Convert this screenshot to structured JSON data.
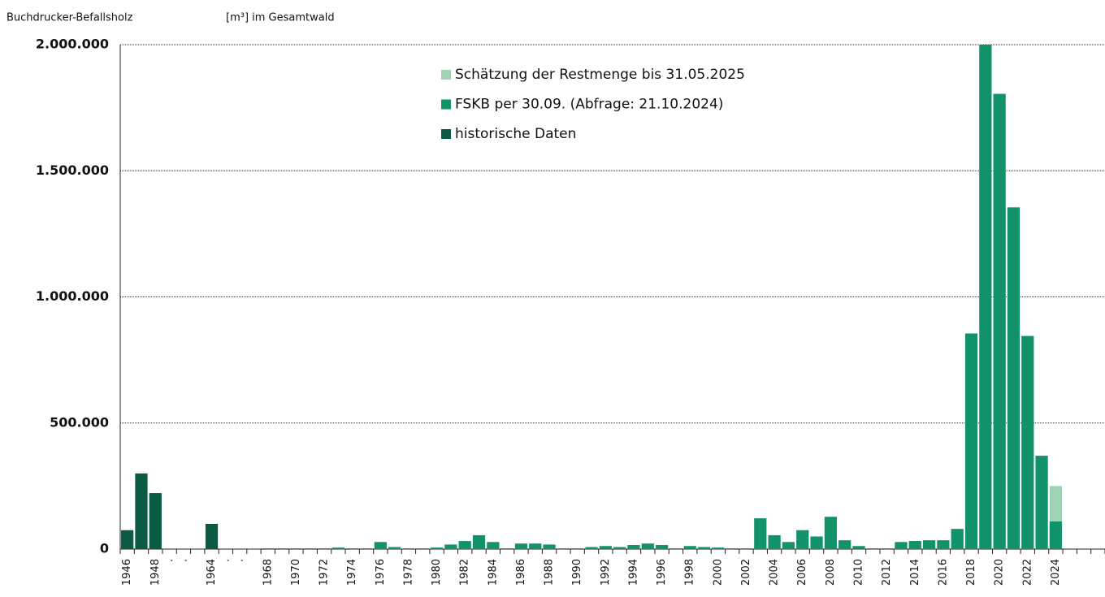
{
  "chart_data": {
    "type": "bar",
    "stacked": true,
    "y_label": "Buchdrucker-Befallsholz",
    "y_unit": "[m³] im Gesamtwald",
    "categories": [
      "1946",
      null,
      "1948",
      ".",
      ".",
      null,
      "1964",
      ".",
      ".",
      null,
      "1968",
      null,
      "1970",
      null,
      "1972",
      null,
      "1974",
      null,
      "1976",
      null,
      "1978",
      null,
      "1980",
      null,
      "1982",
      null,
      "1984",
      null,
      "1986",
      null,
      "1988",
      null,
      "1990",
      null,
      "1992",
      null,
      "1994",
      null,
      "1996",
      null,
      "1998",
      null,
      "2000",
      null,
      "2002",
      null,
      "2004",
      null,
      "2006",
      null,
      "2008",
      null,
      "2010",
      null,
      "2012",
      null,
      "2014",
      null,
      "2016",
      null,
      "2018",
      null,
      "2020",
      null,
      "2022",
      null,
      "2024",
      null,
      null,
      null
    ],
    "series": [
      {
        "name": "historische Daten",
        "color": "#0b5a43",
        "values": [
          75000,
          300000,
          222000,
          null,
          null,
          null,
          100000,
          null,
          null,
          null,
          null,
          null,
          null,
          null,
          null,
          null,
          null,
          null,
          null,
          null,
          null,
          null,
          null,
          null,
          null,
          null,
          null,
          null,
          null,
          null,
          null,
          null,
          null,
          null,
          null,
          null,
          null,
          null,
          null,
          null,
          null,
          null,
          null,
          null,
          null,
          null,
          null,
          null,
          null,
          null,
          null,
          null,
          null,
          null,
          null,
          null,
          null,
          null,
          null,
          null,
          null,
          null,
          null,
          null,
          null,
          null,
          null,
          null,
          null,
          null
        ]
      },
      {
        "name": "FSKB per 30.09. (Abfrage: 21.10.2024)",
        "color": "#12926a",
        "values": [
          null,
          null,
          null,
          null,
          null,
          null,
          null,
          null,
          null,
          null,
          3000,
          3000,
          3000,
          3000,
          3000,
          6000,
          3000,
          3000,
          28000,
          8000,
          3000,
          3000,
          6000,
          18000,
          32000,
          55000,
          28000,
          3000,
          22000,
          22000,
          18000,
          3000,
          3000,
          8000,
          12000,
          8000,
          16000,
          22000,
          16000,
          3000,
          12000,
          8000,
          6000,
          3000,
          3000,
          122000,
          55000,
          28000,
          75000,
          50000,
          128000,
          35000,
          12000,
          3000,
          3000,
          28000,
          32000,
          35000,
          35000,
          80000,
          855000,
          2000000,
          1805000,
          1355000,
          845000,
          370000,
          110000,
          null,
          null,
          null
        ]
      },
      {
        "name": "Schätzung der Restmenge bis 31.05.2025",
        "color": "#9fd2b3",
        "values": [
          null,
          null,
          null,
          null,
          null,
          null,
          null,
          null,
          null,
          null,
          null,
          null,
          null,
          null,
          null,
          null,
          null,
          null,
          null,
          null,
          null,
          null,
          null,
          null,
          null,
          null,
          null,
          null,
          null,
          null,
          null,
          null,
          null,
          null,
          null,
          null,
          null,
          null,
          null,
          null,
          null,
          null,
          null,
          null,
          null,
          null,
          null,
          null,
          null,
          null,
          null,
          null,
          null,
          null,
          null,
          null,
          null,
          null,
          null,
          null,
          null,
          null,
          null,
          null,
          null,
          null,
          140000,
          null,
          null,
          null
        ]
      }
    ],
    "ylim": [
      0,
      2000000
    ],
    "yticks": [
      0,
      {
        "value": 500000,
        "label": "500.000"
      },
      {
        "value": 1000000,
        "label": "1.000.000"
      },
      {
        "value": 1500000,
        "label": "1.500.000"
      },
      {
        "value": 2000000,
        "label": "2.000.000"
      }
    ],
    "grid": true
  }
}
